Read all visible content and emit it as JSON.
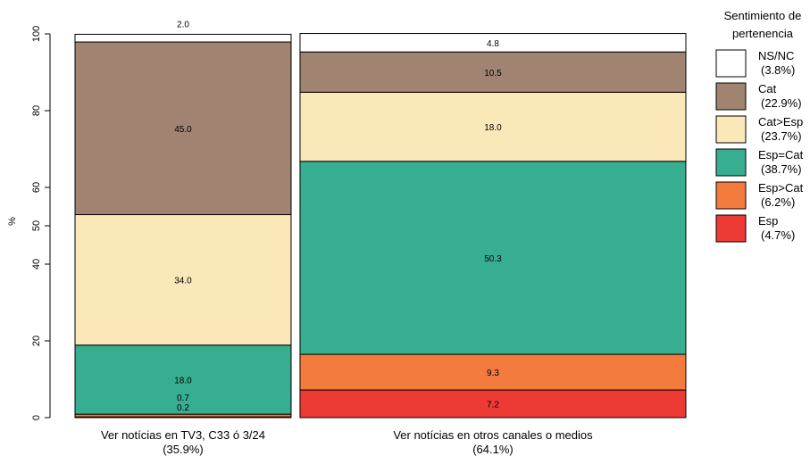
{
  "chart_data": {
    "type": "bar",
    "subtype": "mosaic-stacked-100",
    "ylabel": "%",
    "ylim": [
      0,
      100
    ],
    "yticks": [
      "0",
      "20",
      "40",
      "50",
      "60",
      "80",
      "100"
    ],
    "ytick_values": [
      0,
      20,
      40,
      50,
      60,
      80,
      100
    ],
    "categories": [
      {
        "label": "Ver notícias en TV3, C33 ó 3/24",
        "share": "(35.9%)",
        "share_value": 35.9
      },
      {
        "label": "Ver notícias en otros canales o medios",
        "share": "(64.1%)",
        "share_value": 64.1
      }
    ],
    "series": [
      {
        "name": "Esp",
        "legend_share": "(4.7%)",
        "color": "#EE3A34",
        "values": [
          0.2,
          7.2
        ],
        "labels": [
          "0.2",
          "7.2"
        ]
      },
      {
        "name": "Esp>Cat",
        "legend_share": "(6.2%)",
        "color": "#F47B3E",
        "values": [
          0.7,
          9.3
        ],
        "labels": [
          "0.7",
          "9.3"
        ]
      },
      {
        "name": "Esp=Cat",
        "legend_share": "(38.7%)",
        "color": "#38AE90",
        "values": [
          18.0,
          50.3
        ],
        "labels": [
          "18.0",
          "50.3"
        ]
      },
      {
        "name": "Cat>Esp",
        "legend_share": "(23.7%)",
        "color": "#FAE8B8",
        "values": [
          34.0,
          18.0
        ],
        "labels": [
          "34.0",
          "18.0"
        ]
      },
      {
        "name": "Cat",
        "legend_share": "(22.9%)",
        "color": "#A08370",
        "values": [
          45.0,
          10.5
        ],
        "labels": [
          "45.0",
          "10.5"
        ]
      },
      {
        "name": "NS/NC",
        "legend_share": "(3.8%)",
        "color": "#FFFFFF",
        "values": [
          2.0,
          4.8
        ],
        "labels": [
          "2.0",
          "4.8"
        ]
      }
    ],
    "legend": {
      "title_line1": "Sentimiento de",
      "title_line2": "pertenencia",
      "placement": "right",
      "order": [
        "NS/NC",
        "Cat",
        "Cat>Esp",
        "Esp=Cat",
        "Esp>Cat",
        "Esp"
      ]
    }
  }
}
